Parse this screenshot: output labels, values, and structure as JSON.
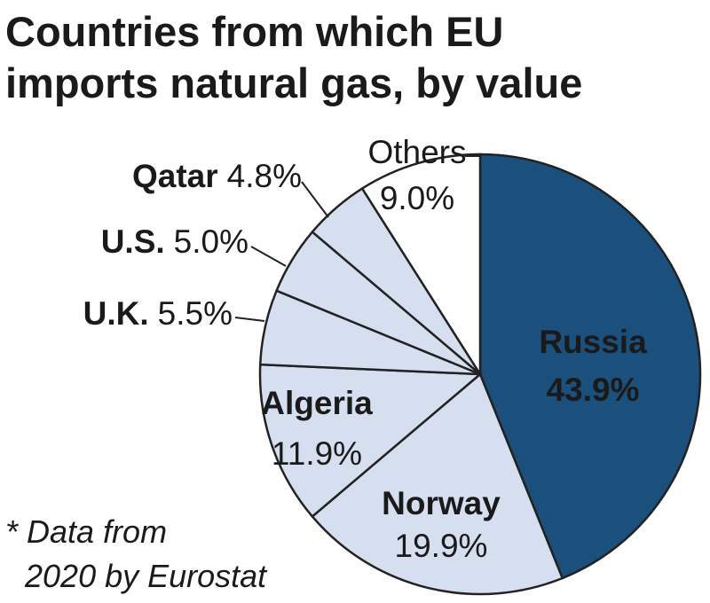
{
  "chart_data": {
    "type": "pie",
    "title": [
      "Countries from which EU",
      "imports natural gas, by value"
    ],
    "categories": [
      "Russia",
      "Norway",
      "Algeria",
      "U.K.",
      "U.S.",
      "Qatar",
      "Others"
    ],
    "values": [
      43.9,
      19.9,
      11.9,
      5.5,
      5.0,
      4.8,
      9.0
    ],
    "value_labels": [
      "43.9%",
      "19.9%",
      "11.9%",
      "5.5%",
      "5.0%",
      "4.8%",
      "9.0%"
    ],
    "colors": [
      "#1b4f7c",
      "#d5dff0",
      "#d5dff0",
      "#d5dff0",
      "#d5dff0",
      "#d5dff0",
      "#ffffff"
    ],
    "note": [
      "* Data from",
      "2020 by Eurostat"
    ]
  }
}
